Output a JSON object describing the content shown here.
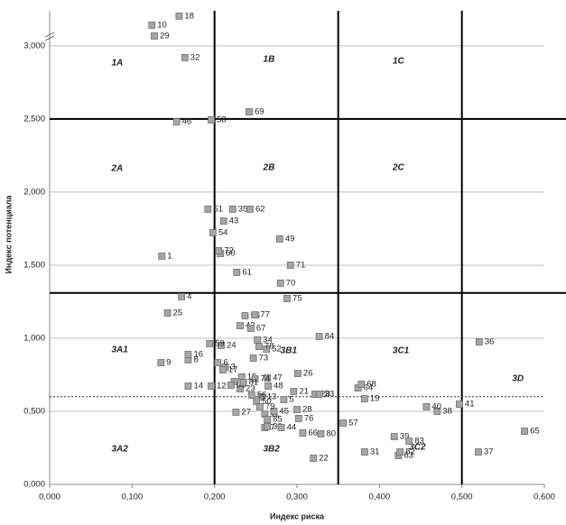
{
  "chart_data": {
    "type": "scatter",
    "xlabel": "Индекс риска",
    "ylabel": "Индекс потенциала",
    "xlim": [
      0,
      0.6
    ],
    "ylim": [
      0,
      3240
    ],
    "xticks": [
      {
        "value": 0,
        "label": "0,000"
      },
      {
        "value": 0.1,
        "label": "0,100"
      },
      {
        "value": 0.2,
        "label": "0,200"
      },
      {
        "value": 0.3,
        "label": "0,300"
      },
      {
        "value": 0.4,
        "label": "0,400"
      },
      {
        "value": 0.5,
        "label": "0,500"
      },
      {
        "value": 0.6,
        "label": "0,600"
      }
    ],
    "yticks": [
      {
        "value": 0,
        "label": "0,000"
      },
      {
        "value": 500,
        "label": "0,500"
      },
      {
        "value": 1000,
        "label": "1,000"
      },
      {
        "value": 1500,
        "label": "1,500"
      },
      {
        "value": 2000,
        "label": "2,000"
      },
      {
        "value": 2500,
        "label": "2,500"
      },
      {
        "value": 3000,
        "label": "3,000"
      }
    ],
    "grid": "y",
    "color": "#a6a6a6",
    "vlines": [
      0.2,
      0.35,
      0.5
    ],
    "hlines": [
      2500,
      1310
    ],
    "dashed_hlines": [
      600
    ],
    "annotations": [
      {
        "text": "1A",
        "x": 0.082,
        "y": 2883
      },
      {
        "text": "1B",
        "x": 0.266,
        "y": 2907
      },
      {
        "text": "1C",
        "x": 0.423,
        "y": 2895
      },
      {
        "text": "2A",
        "x": 0.082,
        "y": 2160
      },
      {
        "text": "2B",
        "x": 0.266,
        "y": 2167
      },
      {
        "text": "2C",
        "x": 0.423,
        "y": 2167
      },
      {
        "text": "3A1",
        "x": 0.085,
        "y": 920
      },
      {
        "text": "3B1",
        "x": 0.29,
        "y": 914
      },
      {
        "text": "3C1",
        "x": 0.426,
        "y": 914
      },
      {
        "text": "3D",
        "x": 0.568,
        "y": 722
      },
      {
        "text": "3A2",
        "x": 0.085,
        "y": 241
      },
      {
        "text": "3B2",
        "x": 0.269,
        "y": 241
      },
      {
        "text": "3C2",
        "x": 0.446,
        "y": 253
      }
    ],
    "labels": [
      "1",
      "2",
      "3",
      "4",
      "5",
      "6",
      "7",
      "8",
      "9",
      "10",
      "11",
      "12",
      "13",
      "14",
      "15",
      "16",
      "17",
      "18",
      "19",
      "20",
      "21",
      "22",
      "23",
      "24",
      "25",
      "26",
      "27",
      "28",
      "29",
      "30",
      "31",
      "32",
      "33",
      "34",
      "35",
      "36",
      "37",
      "38",
      "39",
      "40",
      "41",
      "42",
      "43",
      "44",
      "45",
      "46",
      "47",
      "48",
      "49",
      "50",
      "51",
      "52",
      "53",
      "54",
      "55",
      "56",
      "57",
      "58",
      "59",
      "60",
      "61",
      "62",
      "63",
      "64",
      "65",
      "66",
      "67",
      "68",
      "69",
      "70",
      "71",
      "72",
      "73",
      "74",
      "75",
      "76",
      "77",
      "78",
      "79",
      "80",
      "81",
      "82",
      "83",
      "84",
      "85"
    ],
    "x": [
      0.136,
      0.224,
      0.213,
      0.16,
      0.284,
      0.204,
      0.261,
      0.168,
      0.135,
      0.124,
      0.261,
      0.196,
      0.257,
      0.168,
      0.233,
      0.168,
      0.21,
      0.157,
      0.382,
      0.322,
      0.296,
      0.32,
      0.231,
      0.208,
      0.143,
      0.301,
      0.226,
      0.3,
      0.127,
      0.264,
      0.382,
      0.164,
      0.327,
      0.252,
      0.222,
      0.521,
      0.52,
      0.47,
      0.418,
      0.457,
      0.497,
      0.231,
      0.211,
      0.281,
      0.272,
      0.154,
      0.264,
      0.265,
      0.279,
      0.251,
      0.192,
      0.263,
      0.22,
      0.198,
      0.237,
      0.245,
      0.356,
      0.196,
      0.194,
      0.207,
      0.227,
      0.243,
      0.423,
      0.374,
      0.576,
      0.307,
      0.244,
      0.378,
      0.242,
      0.28,
      0.292,
      0.205,
      0.247,
      0.249,
      0.288,
      0.302,
      0.249,
      0.254,
      0.255,
      0.329,
      0.235,
      0.425,
      0.436,
      0.327,
      0.264
    ],
    "y": [
      1562,
      704,
      802,
      1284,
      580,
      833,
      389,
      852,
      833,
      3142,
      481,
      673,
      599,
      673,
      735,
      889,
      784,
      3204,
      586,
      617,
      636,
      179,
      654,
      951,
      1173,
      759,
      494,
      512,
      3068,
      395,
      222,
      2920,
      617,
      988,
      1883,
      975,
      222,
      500,
      327,
      531,
      549,
      1086,
      1802,
      389,
      500,
      2481,
      728,
      673,
      1679,
      568,
      1883,
      926,
      679,
      1722,
      1154,
      611,
      420,
      2494,
      963,
      1580,
      1451,
      1883,
      198,
      660,
      364,
      352,
      1068,
      685,
      2549,
      1377,
      1500,
      1599,
      864,
      722,
      1272,
      451,
      1160,
      944,
      531,
      346,
      698,
      222,
      296,
      1012,
      444
    ]
  }
}
